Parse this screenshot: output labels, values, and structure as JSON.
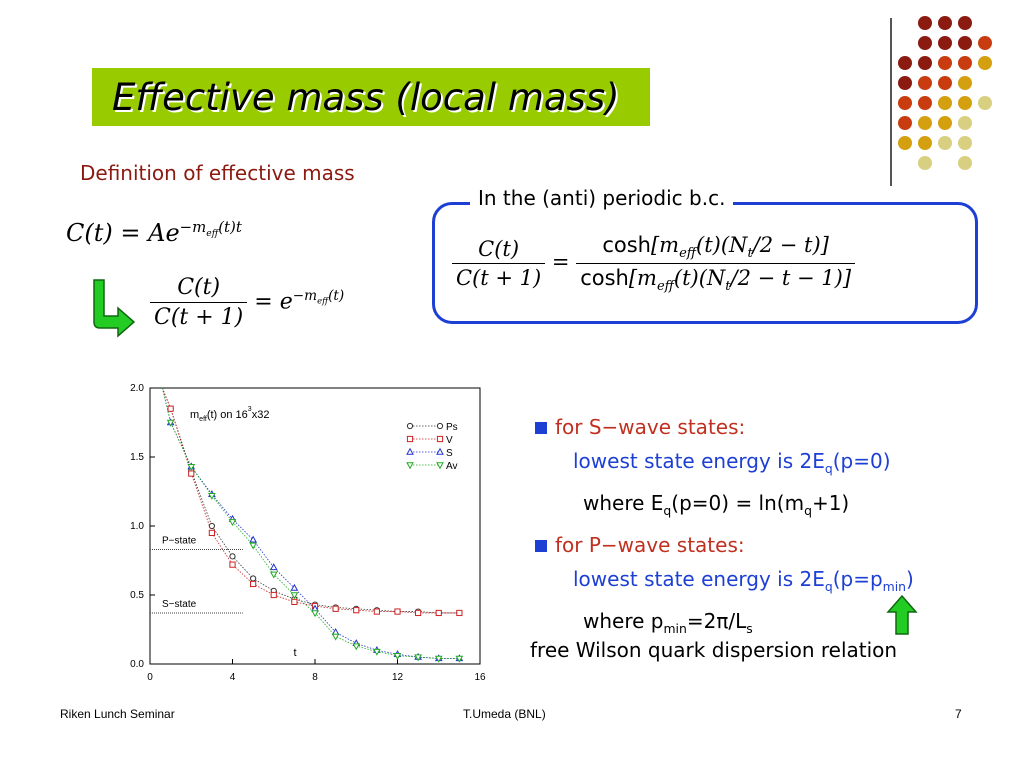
{
  "slide": {
    "title": "Effective mass (local mass)",
    "definition_heading": "Definition of effective mass",
    "box_label": "In the (anti) periodic b.c.",
    "eq1": {
      "lhs": "C(t)",
      "eq": "=",
      "coef": "A",
      "base": "e",
      "exp": "−m",
      "exp_sub": "eff",
      "exp_tail": "(t)t"
    },
    "eq2": {
      "num": "C(t)",
      "den": "C(t + 1)",
      "eq": "=",
      "base": "e",
      "exp": "−m",
      "exp_sub": "eff",
      "exp_tail": "(t)"
    },
    "eq3": {
      "num": "C(t)",
      "den": "C(t + 1)",
      "eq": "=",
      "rhs_num_fn": "cosh",
      "rhs_num_a": "[m",
      "rhs_num_sub": "eff",
      "rhs_num_b": "(t)(N",
      "rhs_num_nsub": "t",
      "rhs_num_c": "/2 − t)]",
      "rhs_den_fn": "cosh",
      "rhs_den_a": "[m",
      "rhs_den_sub": "eff",
      "rhs_den_b": "(t)(N",
      "rhs_den_nsub": "t",
      "rhs_den_c": "/2 − t − 1)]"
    },
    "bullets": {
      "s_heading": "for S−wave states:",
      "s_line1": "lowest state energy is 2E",
      "s_line1_sub": "q",
      "s_line1_tail": "(p=0)",
      "s_line2": "where E",
      "s_line2_sub": "q",
      "s_line2_mid": "(p=0) = ln(m",
      "s_line2_sub2": "q",
      "s_line2_tail": "+1)",
      "p_heading": "for P−wave states:",
      "p_line1": "lowest state energy is 2E",
      "p_line1_sub": "q",
      "p_line1_mid": "(p=p",
      "p_line1_sub2": "min",
      "p_line1_tail": ")",
      "p_line2": "where p",
      "p_line2_sub": "min",
      "p_line2_mid": "=2π/L",
      "p_line2_sub2": "s"
    },
    "dispersion": "free Wilson quark dispersion relation",
    "footer": {
      "left": "Riken Lunch Seminar",
      "center": "T.Umeda (BNL)",
      "page": "7"
    },
    "colors": {
      "title_bg": "#99cc00",
      "box_border": "#1d3fd4",
      "heading": "#8b1a10",
      "bullet_heading": "#c03020",
      "bullet_text": "#1d3fd4",
      "arrow": "#22aa22"
    },
    "icons": {
      "down_right_arrow": "arrow-down-right-icon",
      "up_arrow": "arrow-up-icon"
    }
  },
  "chart_data": {
    "type": "line",
    "annotation": "m_eff(t) on 16^3x32",
    "annotation_parts": {
      "m": "m",
      "m_sub": "eff",
      "mid": "(t) on 16",
      "sup": "3",
      "tail": "x32"
    },
    "xlabel": "t",
    "xlim": [
      0,
      16
    ],
    "ylim": [
      0.0,
      2.0
    ],
    "xticks": [
      "0",
      "4",
      "8",
      "12",
      "16"
    ],
    "yticks": [
      "0.0",
      "0.5",
      "1.0",
      "1.5",
      "2.0"
    ],
    "legend_position": "top-right",
    "reference_lines": [
      {
        "label": "P−state",
        "y": 0.83
      },
      {
        "label": "S−state",
        "y": 0.37
      }
    ],
    "series": [
      {
        "name": "Ps",
        "marker": "circle",
        "color": "#333333",
        "x": [
          1,
          2,
          3,
          4,
          5,
          6,
          7,
          8,
          9,
          10,
          11,
          12,
          13,
          14,
          15
        ],
        "y": [
          1.85,
          1.4,
          1.0,
          0.78,
          0.62,
          0.53,
          0.47,
          0.43,
          0.41,
          0.4,
          0.39,
          0.38,
          0.38,
          0.37,
          0.37
        ]
      },
      {
        "name": "V",
        "marker": "square",
        "color": "#cc2222",
        "x": [
          1,
          2,
          3,
          4,
          5,
          6,
          7,
          8,
          9,
          10,
          11,
          12,
          13,
          14,
          15
        ],
        "y": [
          1.85,
          1.38,
          0.95,
          0.72,
          0.58,
          0.5,
          0.45,
          0.42,
          0.4,
          0.39,
          0.38,
          0.38,
          0.37,
          0.37,
          0.37
        ]
      },
      {
        "name": "S",
        "marker": "triangle-up",
        "color": "#2233cc",
        "x": [
          1,
          2,
          3,
          4,
          5,
          6,
          7,
          8,
          9,
          10,
          11,
          12,
          13,
          14,
          15
        ],
        "y": [
          1.75,
          1.43,
          1.23,
          1.05,
          0.9,
          0.7,
          0.55,
          0.4,
          0.23,
          0.15,
          0.1,
          0.07,
          0.05,
          0.04,
          0.04
        ]
      },
      {
        "name": "Av",
        "marker": "triangle-down",
        "color": "#22aa22",
        "x": [
          1,
          2,
          3,
          4,
          5,
          6,
          7,
          8,
          9,
          10,
          11,
          12,
          13,
          14,
          15
        ],
        "y": [
          1.75,
          1.43,
          1.22,
          1.03,
          0.86,
          0.65,
          0.5,
          0.37,
          0.2,
          0.13,
          0.09,
          0.06,
          0.05,
          0.04,
          0.04
        ]
      }
    ]
  }
}
